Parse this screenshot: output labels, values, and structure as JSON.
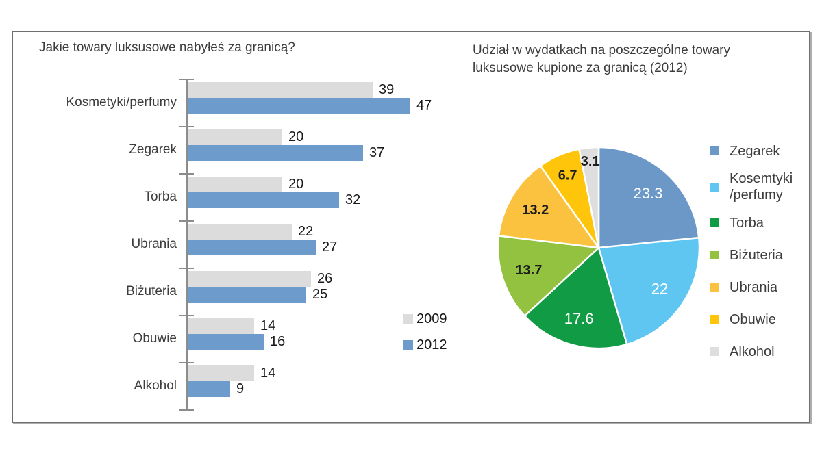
{
  "chart_data": [
    {
      "type": "bar",
      "orientation": "horizontal",
      "title": "Jakie towary luksusowe nabyłeś za granicą?",
      "categories": [
        "Kosmetyki/perfumy",
        "Zegarek",
        "Torba",
        "Ubrania",
        "Biżuteria",
        "Obuwie",
        "Alkohol"
      ],
      "series": [
        {
          "name": "2009",
          "color": "#DCDCDC",
          "values": [
            39,
            20,
            20,
            22,
            26,
            14,
            14
          ]
        },
        {
          "name": "2012",
          "color": "#6D9BCB",
          "values": [
            47,
            37,
            32,
            27,
            25,
            16,
            9
          ]
        }
      ],
      "xlim": [
        0,
        50
      ],
      "grid": false,
      "axis_color": "#8C8C8C",
      "value_label_color": "#191919",
      "legend_position": "right-bottom"
    },
    {
      "type": "pie",
      "title": "Udział w wydatkach na poszczególne towary luksusowe kupione za granicą (2012)",
      "title_lines": [
        "Udział w wydatkach na poszczególne towary",
        "luksusowe kupione za granicą (2012)"
      ],
      "start_angle_deg": 0,
      "direction": "clockwise",
      "legend_position": "right",
      "slices": [
        {
          "label": "Zegarek",
          "legend_label": "Zegarek",
          "value": 23.3,
          "color": "#6C98C8",
          "label_color": "#FFFFFF"
        },
        {
          "label": "Kosemtyki/perfumy",
          "legend_label": "Kosemtyki\n/perfumy",
          "value": 22,
          "color": "#5FC6F2",
          "label_color": "#FFFFFF"
        },
        {
          "label": "Torba",
          "legend_label": "Torba",
          "value": 17.6,
          "color": "#119B45",
          "label_color": "#FFFFFF"
        },
        {
          "label": "Biżuteria",
          "legend_label": "Biżuteria",
          "value": 13.7,
          "color": "#92C23F",
          "label_color": "#1E1E1E"
        },
        {
          "label": "Ubrania",
          "legend_label": "Ubrania",
          "value": 13.2,
          "color": "#FAC23F",
          "label_color": "#1E1E1E"
        },
        {
          "label": "Obuwie",
          "legend_label": "Obuwie",
          "value": 6.7,
          "color": "#FEC50B",
          "label_color": "#1E1E1E"
        },
        {
          "label": "Alkohol",
          "legend_label": "Alkohol",
          "value": 3.1,
          "color": "#DEDEDE",
          "label_color": "#1E1E1E"
        }
      ]
    }
  ]
}
